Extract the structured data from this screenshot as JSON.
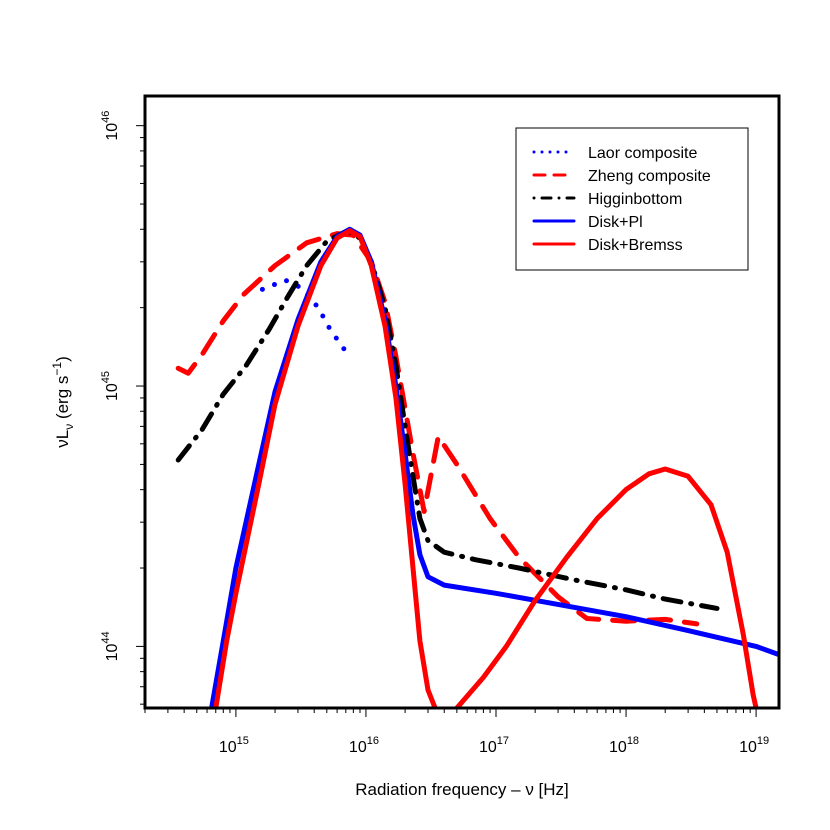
{
  "chart_data": {
    "type": "line",
    "xlabel": "Radiation frequency – ν [Hz]",
    "ylabel": {
      "main": "νL",
      "sub": "ν",
      "rest": " (erg s",
      "sup": "−1",
      "close": ")"
    },
    "x_scale": "log",
    "y_scale": "log",
    "xlim": [
      200000000000000.0,
      1.5e+19
    ],
    "ylim": [
      5.8e+43,
      1.3e+46
    ],
    "x_ticks": [
      {
        "value": 1000000000000000.0,
        "base": "10",
        "exp": "15"
      },
      {
        "value": 1e+16,
        "base": "10",
        "exp": "16"
      },
      {
        "value": 1e+17,
        "base": "10",
        "exp": "17"
      },
      {
        "value": 1e+18,
        "base": "10",
        "exp": "18"
      },
      {
        "value": 1e+19,
        "base": "10",
        "exp": "19"
      }
    ],
    "y_ticks": [
      {
        "value": 1e+44,
        "base": "10",
        "exp": "44"
      },
      {
        "value": 1e+45,
        "base": "10",
        "exp": "45"
      },
      {
        "value": 1e+46,
        "base": "10",
        "exp": "46"
      }
    ],
    "legend_position": "top-right",
    "series": [
      {
        "name": "Laor composite",
        "color": "#0000ff",
        "style": "dotted",
        "points": [
          [
            1600000000000000.0,
            2.35e+45
          ],
          [
            2400000000000000.0,
            2.55e+45
          ],
          [
            3200000000000000.0,
            2.38e+45
          ],
          [
            4300000000000000.0,
            2e+45
          ],
          [
            5300000000000000.0,
            1.65e+45
          ],
          [
            6900000000000000.0,
            1.37e+45
          ]
        ]
      },
      {
        "name": "Zheng composite",
        "color": "#ff0000",
        "style": "dashed",
        "points": [
          [
            360000000000000.0,
            1.17e+45
          ],
          [
            430000000000000.0,
            1.12e+45
          ],
          [
            550000000000000.0,
            1.32e+45
          ],
          [
            800000000000000.0,
            1.78e+45
          ],
          [
            1150000000000000.0,
            2.25e+45
          ],
          [
            2000000000000000.0,
            2.9e+45
          ],
          [
            3500000000000000.0,
            3.55e+45
          ],
          [
            6000000000000000.0,
            3.85e+45
          ],
          [
            8000000000000000.0,
            3.8e+45
          ],
          [
            1.1e+16,
            3e+45
          ],
          [
            1.4e+16,
            2.1e+45
          ],
          [
            1.7e+16,
            1.3e+45
          ],
          [
            2e+16,
            8.2e+44
          ],
          [
            2.3e+16,
            5.5e+44
          ],
          [
            2.8e+16,
            3.3e+44
          ],
          [
            3.6e+16,
            6.4e+44
          ],
          [
            5e+16,
            5e+44
          ],
          [
            9e+16,
            3.1e+44
          ],
          [
            1.5e+17,
            2.2e+44
          ],
          [
            3e+17,
            1.55e+44
          ],
          [
            5e+17,
            1.28e+44
          ],
          [
            1e+18,
            1.25e+44
          ],
          [
            2e+18,
            1.27e+44
          ],
          [
            3.5e+18,
            1.22e+44
          ]
        ]
      },
      {
        "name": "Higginbottom",
        "color": "#000000",
        "style": "dotdash",
        "points": [
          [
            360000000000000.0,
            5.2e+44
          ],
          [
            550000000000000.0,
            6.8e+44
          ],
          [
            800000000000000.0,
            9.3e+44
          ],
          [
            1200000000000000.0,
            1.2e+45
          ],
          [
            1800000000000000.0,
            1.65e+45
          ],
          [
            2500000000000000.0,
            2.2e+45
          ],
          [
            3500000000000000.0,
            2.9e+45
          ],
          [
            5000000000000000.0,
            3.6e+45
          ],
          [
            7200000000000000.0,
            3.95e+45
          ],
          [
            9000000000000000.0,
            3.7e+45
          ],
          [
            1.1e+16,
            3e+45
          ],
          [
            1.4e+16,
            2e+45
          ],
          [
            1.7e+16,
            1.2e+45
          ],
          [
            2e+16,
            7e+44
          ],
          [
            2.3e+16,
            4.5e+44
          ],
          [
            2.6e+16,
            3.1e+44
          ],
          [
            3e+16,
            2.55e+44
          ],
          [
            4e+16,
            2.3e+44
          ],
          [
            7e+16,
            2.15e+44
          ],
          [
            1.5e+17,
            2e+44
          ],
          [
            4e+17,
            1.8e+44
          ],
          [
            1e+18,
            1.65e+44
          ],
          [
            2e+18,
            1.52e+44
          ],
          [
            5e+18,
            1.4e+44
          ]
        ]
      },
      {
        "name": "Disk+Pl",
        "color": "#0000ff",
        "style": "solid",
        "points": [
          [
            650000000000000.0,
            5.8e+43
          ],
          [
            800000000000000.0,
            1.05e+44
          ],
          [
            1000000000000000.0,
            2e+44
          ],
          [
            1500000000000000.0,
            5e+44
          ],
          [
            2000000000000000.0,
            9.5e+44
          ],
          [
            3000000000000000.0,
            1.8e+45
          ],
          [
            4500000000000000.0,
            3e+45
          ],
          [
            6000000000000000.0,
            3.75e+45
          ],
          [
            7500000000000000.0,
            4e+45
          ],
          [
            9000000000000000.0,
            3.8e+45
          ],
          [
            1.1e+16,
            3e+45
          ],
          [
            1.4e+16,
            1.8e+45
          ],
          [
            1.7e+16,
            1e+45
          ],
          [
            2e+16,
            5.5e+44
          ],
          [
            2.3e+16,
            3.2e+44
          ],
          [
            2.6e+16,
            2.25e+44
          ],
          [
            3e+16,
            1.85e+44
          ],
          [
            4e+16,
            1.72e+44
          ],
          [
            1e+17,
            1.6e+44
          ],
          [
            3e+17,
            1.45e+44
          ],
          [
            1e+18,
            1.3e+44
          ],
          [
            3e+18,
            1.15e+44
          ],
          [
            1e+19,
            1e+44
          ],
          [
            1.5e+19,
            9.3e+43
          ]
        ]
      },
      {
        "name": "Disk+Bremss",
        "color": "#ff0000",
        "style": "solid",
        "points": [
          [
            700000000000000.0,
            5.8e+43
          ],
          [
            850000000000000.0,
            1.05e+44
          ],
          [
            1000000000000000.0,
            1.6e+44
          ],
          [
            1500000000000000.0,
            4.2e+44
          ],
          [
            2000000000000000.0,
            8.5e+44
          ],
          [
            3000000000000000.0,
            1.7e+45
          ],
          [
            4500000000000000.0,
            2.9e+45
          ],
          [
            6000000000000000.0,
            3.7e+45
          ],
          [
            7500000000000000.0,
            3.95e+45
          ],
          [
            9000000000000000.0,
            3.75e+45
          ],
          [
            1.1e+16,
            2.9e+45
          ],
          [
            1.4e+16,
            1.7e+45
          ],
          [
            1.7e+16,
            9e+44
          ],
          [
            2e+16,
            4.2e+44
          ],
          [
            2.3e+16,
            2e+44
          ],
          [
            2.6e+16,
            1.05e+44
          ],
          [
            3e+16,
            6.8e+43
          ],
          [
            3.4e+16,
            5.8e+43
          ]
        ]
      },
      {
        "name": "",
        "color": "#ff0000",
        "style": "solid",
        "legend": false,
        "points": [
          [
            5e+16,
            5.8e+43
          ],
          [
            8e+16,
            7.6e+43
          ],
          [
            1.2e+17,
            1e+44
          ],
          [
            2e+17,
            1.5e+44
          ],
          [
            3.5e+17,
            2.2e+44
          ],
          [
            6e+17,
            3.1e+44
          ],
          [
            1e+18,
            4e+44
          ],
          [
            1.5e+18,
            4.6e+44
          ],
          [
            2e+18,
            4.8e+44
          ],
          [
            3e+18,
            4.5e+44
          ],
          [
            4.5e+18,
            3.5e+44
          ],
          [
            6e+18,
            2.3e+44
          ],
          [
            8e+18,
            1.1e+44
          ],
          [
            9.5e+18,
            6.5e+43
          ],
          [
            1e+19,
            5.8e+43
          ]
        ]
      }
    ]
  }
}
